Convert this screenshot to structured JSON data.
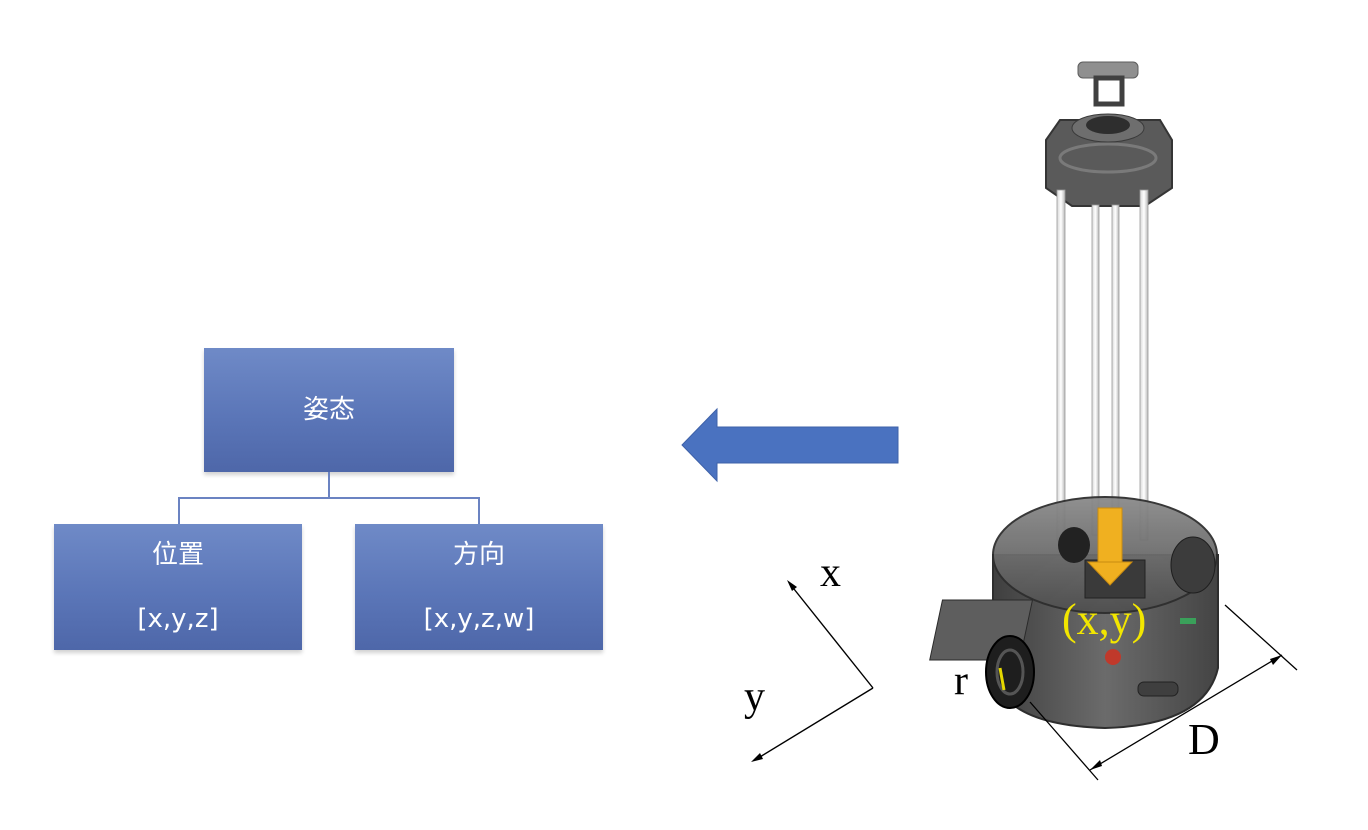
{
  "hierarchy": {
    "root": {
      "label": "姿态"
    },
    "children": [
      {
        "label": "位置",
        "value": "[x,y,z]"
      },
      {
        "label": "方向",
        "value": "[x,y,z,w]"
      }
    ]
  },
  "axes": {
    "x_label": "x",
    "y_label": "y"
  },
  "robot": {
    "position_label": "(x,y)",
    "wheel_radius_label": "r",
    "diameter_label": "D",
    "colors": {
      "arrow_fill": "#4a72c0",
      "marker": "#f0b020",
      "position_text": "#f2e600"
    }
  },
  "colors": {
    "box_fill": "#5b76b8",
    "connector": "#6b83c2"
  }
}
